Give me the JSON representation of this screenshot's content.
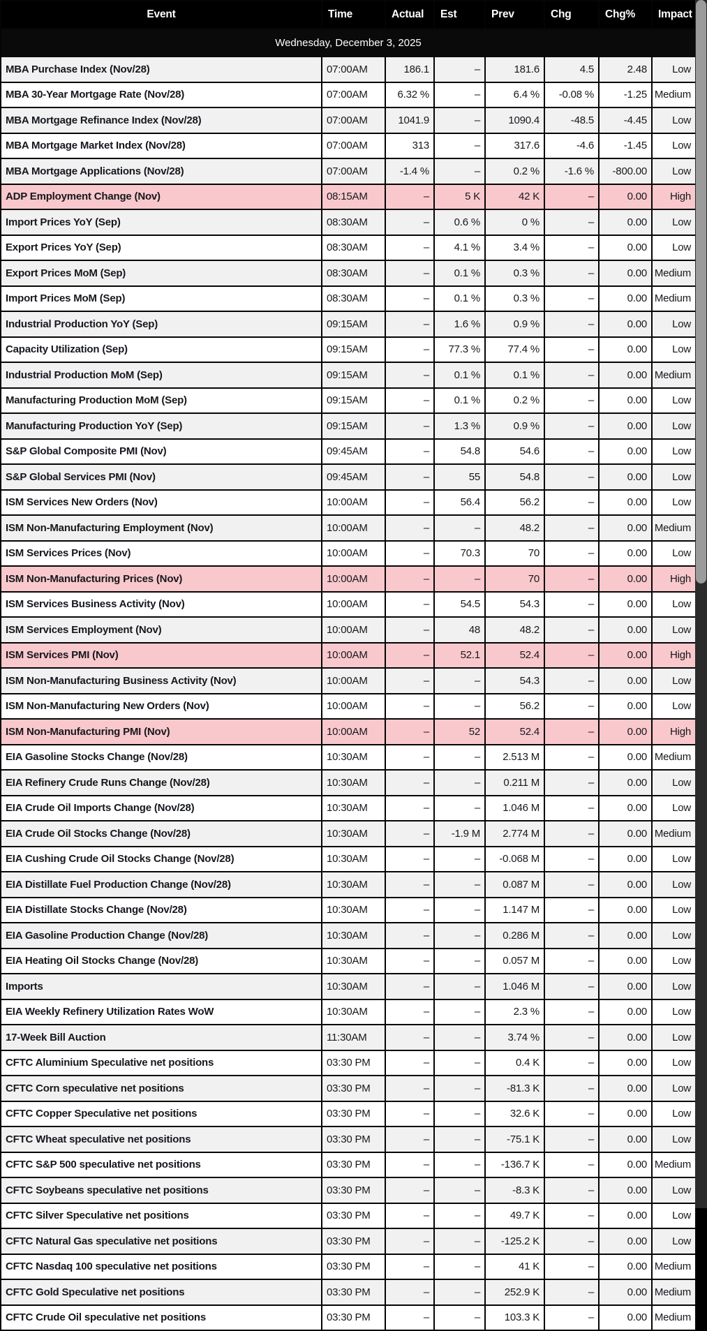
{
  "colors": {
    "header_bg": "#000000",
    "header_text": "#ffffff",
    "row_stripe": "#f1f1f1",
    "row_white": "#ffffff",
    "high_impact_row": "#f9c8cc",
    "cell_text": "#15181d",
    "border": "#050505",
    "scrollbar_track": "#2b2b2b",
    "scrollbar_thumb": "#9b9b9b"
  },
  "chart_data": {
    "type": "table",
    "date_header": "Wednesday, December 3, 2025",
    "columns": [
      {
        "key": "event",
        "label": "Event"
      },
      {
        "key": "time",
        "label": "Time"
      },
      {
        "key": "actual",
        "label": "Actual"
      },
      {
        "key": "est",
        "label": "Est"
      },
      {
        "key": "prev",
        "label": "Prev"
      },
      {
        "key": "chg",
        "label": "Chg"
      },
      {
        "key": "chgpct",
        "label": "Chg%"
      },
      {
        "key": "impact",
        "label": "Impact"
      }
    ],
    "rows": [
      {
        "event": "MBA Purchase Index (Nov/28)",
        "time": "07:00AM",
        "actual": "186.1",
        "est": "–",
        "prev": "181.6",
        "chg": "4.5",
        "chgpct": "2.48",
        "impact": "Low"
      },
      {
        "event": "MBA 30-Year Mortgage Rate (Nov/28)",
        "time": "07:00AM",
        "actual": "6.32 %",
        "est": "–",
        "prev": "6.4 %",
        "chg": "-0.08 %",
        "chgpct": "-1.25",
        "impact": "Medium"
      },
      {
        "event": "MBA Mortgage Refinance Index (Nov/28)",
        "time": "07:00AM",
        "actual": "1041.9",
        "est": "–",
        "prev": "1090.4",
        "chg": "-48.5",
        "chgpct": "-4.45",
        "impact": "Low"
      },
      {
        "event": "MBA Mortgage Market Index (Nov/28)",
        "time": "07:00AM",
        "actual": "313",
        "est": "–",
        "prev": "317.6",
        "chg": "-4.6",
        "chgpct": "-1.45",
        "impact": "Low"
      },
      {
        "event": "MBA Mortgage Applications (Nov/28)",
        "time": "07:00AM",
        "actual": "-1.4 %",
        "est": "–",
        "prev": "0.2 %",
        "chg": "-1.6 %",
        "chgpct": "-800.00",
        "impact": "Low"
      },
      {
        "event": "ADP Employment Change (Nov)",
        "time": "08:15AM",
        "actual": "–",
        "est": "5 K",
        "prev": "42 K",
        "chg": "–",
        "chgpct": "0.00",
        "impact": "High"
      },
      {
        "event": "Import Prices YoY (Sep)",
        "time": "08:30AM",
        "actual": "–",
        "est": "0.6 %",
        "prev": "0 %",
        "chg": "–",
        "chgpct": "0.00",
        "impact": "Low"
      },
      {
        "event": "Export Prices YoY (Sep)",
        "time": "08:30AM",
        "actual": "–",
        "est": "4.1 %",
        "prev": "3.4 %",
        "chg": "–",
        "chgpct": "0.00",
        "impact": "Low"
      },
      {
        "event": "Export Prices MoM (Sep)",
        "time": "08:30AM",
        "actual": "–",
        "est": "0.1 %",
        "prev": "0.3 %",
        "chg": "–",
        "chgpct": "0.00",
        "impact": "Medium"
      },
      {
        "event": "Import Prices MoM (Sep)",
        "time": "08:30AM",
        "actual": "–",
        "est": "0.1 %",
        "prev": "0.3 %",
        "chg": "–",
        "chgpct": "0.00",
        "impact": "Medium"
      },
      {
        "event": "Industrial Production YoY (Sep)",
        "time": "09:15AM",
        "actual": "–",
        "est": "1.6 %",
        "prev": "0.9 %",
        "chg": "–",
        "chgpct": "0.00",
        "impact": "Low"
      },
      {
        "event": "Capacity Utilization (Sep)",
        "time": "09:15AM",
        "actual": "–",
        "est": "77.3 %",
        "prev": "77.4 %",
        "chg": "–",
        "chgpct": "0.00",
        "impact": "Low"
      },
      {
        "event": "Industrial Production MoM (Sep)",
        "time": "09:15AM",
        "actual": "–",
        "est": "0.1 %",
        "prev": "0.1 %",
        "chg": "–",
        "chgpct": "0.00",
        "impact": "Medium"
      },
      {
        "event": "Manufacturing Production MoM (Sep)",
        "time": "09:15AM",
        "actual": "–",
        "est": "0.1 %",
        "prev": "0.2 %",
        "chg": "–",
        "chgpct": "0.00",
        "impact": "Low"
      },
      {
        "event": "Manufacturing Production YoY (Sep)",
        "time": "09:15AM",
        "actual": "–",
        "est": "1.3 %",
        "prev": "0.9 %",
        "chg": "–",
        "chgpct": "0.00",
        "impact": "Low"
      },
      {
        "event": "S&P Global Composite PMI (Nov)",
        "time": "09:45AM",
        "actual": "–",
        "est": "54.8",
        "prev": "54.6",
        "chg": "–",
        "chgpct": "0.00",
        "impact": "Low"
      },
      {
        "event": "S&P Global Services PMI (Nov)",
        "time": "09:45AM",
        "actual": "–",
        "est": "55",
        "prev": "54.8",
        "chg": "–",
        "chgpct": "0.00",
        "impact": "Low"
      },
      {
        "event": "ISM Services New Orders (Nov)",
        "time": "10:00AM",
        "actual": "–",
        "est": "56.4",
        "prev": "56.2",
        "chg": "–",
        "chgpct": "0.00",
        "impact": "Low"
      },
      {
        "event": "ISM Non-Manufacturing Employment (Nov)",
        "time": "10:00AM",
        "actual": "–",
        "est": "–",
        "prev": "48.2",
        "chg": "–",
        "chgpct": "0.00",
        "impact": "Medium"
      },
      {
        "event": "ISM Services Prices (Nov)",
        "time": "10:00AM",
        "actual": "–",
        "est": "70.3",
        "prev": "70",
        "chg": "–",
        "chgpct": "0.00",
        "impact": "Low"
      },
      {
        "event": "ISM Non-Manufacturing Prices (Nov)",
        "time": "10:00AM",
        "actual": "–",
        "est": "–",
        "prev": "70",
        "chg": "–",
        "chgpct": "0.00",
        "impact": "High"
      },
      {
        "event": "ISM Services Business Activity (Nov)",
        "time": "10:00AM",
        "actual": "–",
        "est": "54.5",
        "prev": "54.3",
        "chg": "–",
        "chgpct": "0.00",
        "impact": "Low"
      },
      {
        "event": "ISM Services Employment (Nov)",
        "time": "10:00AM",
        "actual": "–",
        "est": "48",
        "prev": "48.2",
        "chg": "–",
        "chgpct": "0.00",
        "impact": "Low"
      },
      {
        "event": "ISM Services PMI (Nov)",
        "time": "10:00AM",
        "actual": "–",
        "est": "52.1",
        "prev": "52.4",
        "chg": "–",
        "chgpct": "0.00",
        "impact": "High"
      },
      {
        "event": "ISM Non-Manufacturing Business Activity (Nov)",
        "time": "10:00AM",
        "actual": "–",
        "est": "–",
        "prev": "54.3",
        "chg": "–",
        "chgpct": "0.00",
        "impact": "Low"
      },
      {
        "event": "ISM Non-Manufacturing New Orders (Nov)",
        "time": "10:00AM",
        "actual": "–",
        "est": "–",
        "prev": "56.2",
        "chg": "–",
        "chgpct": "0.00",
        "impact": "Low"
      },
      {
        "event": "ISM Non-Manufacturing PMI (Nov)",
        "time": "10:00AM",
        "actual": "–",
        "est": "52",
        "prev": "52.4",
        "chg": "–",
        "chgpct": "0.00",
        "impact": "High"
      },
      {
        "event": "EIA Gasoline Stocks Change (Nov/28)",
        "time": "10:30AM",
        "actual": "–",
        "est": "–",
        "prev": "2.513 M",
        "chg": "–",
        "chgpct": "0.00",
        "impact": "Medium"
      },
      {
        "event": "EIA Refinery Crude Runs Change (Nov/28)",
        "time": "10:30AM",
        "actual": "–",
        "est": "–",
        "prev": "0.211 M",
        "chg": "–",
        "chgpct": "0.00",
        "impact": "Low"
      },
      {
        "event": "EIA Crude Oil Imports Change (Nov/28)",
        "time": "10:30AM",
        "actual": "–",
        "est": "–",
        "prev": "1.046 M",
        "chg": "–",
        "chgpct": "0.00",
        "impact": "Low"
      },
      {
        "event": "EIA Crude Oil Stocks Change (Nov/28)",
        "time": "10:30AM",
        "actual": "–",
        "est": "-1.9 M",
        "prev": "2.774 M",
        "chg": "–",
        "chgpct": "0.00",
        "impact": "Medium"
      },
      {
        "event": "EIA Cushing Crude Oil Stocks Change (Nov/28)",
        "time": "10:30AM",
        "actual": "–",
        "est": "–",
        "prev": "-0.068 M",
        "chg": "–",
        "chgpct": "0.00",
        "impact": "Low"
      },
      {
        "event": "EIA Distillate Fuel Production Change (Nov/28)",
        "time": "10:30AM",
        "actual": "–",
        "est": "–",
        "prev": "0.087 M",
        "chg": "–",
        "chgpct": "0.00",
        "impact": "Low"
      },
      {
        "event": "EIA Distillate Stocks Change (Nov/28)",
        "time": "10:30AM",
        "actual": "–",
        "est": "–",
        "prev": "1.147 M",
        "chg": "–",
        "chgpct": "0.00",
        "impact": "Low"
      },
      {
        "event": "EIA Gasoline Production Change (Nov/28)",
        "time": "10:30AM",
        "actual": "–",
        "est": "–",
        "prev": "0.286 M",
        "chg": "–",
        "chgpct": "0.00",
        "impact": "Low"
      },
      {
        "event": "EIA Heating Oil Stocks Change (Nov/28)",
        "time": "10:30AM",
        "actual": "–",
        "est": "–",
        "prev": "0.057 M",
        "chg": "–",
        "chgpct": "0.00",
        "impact": "Low"
      },
      {
        "event": "Imports",
        "time": "10:30AM",
        "actual": "–",
        "est": "–",
        "prev": "1.046 M",
        "chg": "–",
        "chgpct": "0.00",
        "impact": "Low"
      },
      {
        "event": "EIA Weekly Refinery Utilization Rates WoW",
        "time": "10:30AM",
        "actual": "–",
        "est": "–",
        "prev": "2.3 %",
        "chg": "–",
        "chgpct": "0.00",
        "impact": "Low"
      },
      {
        "event": "17-Week Bill Auction",
        "time": "11:30AM",
        "actual": "–",
        "est": "–",
        "prev": "3.74 %",
        "chg": "–",
        "chgpct": "0.00",
        "impact": "Low"
      },
      {
        "event": "CFTC Aluminium Speculative net positions",
        "time": "03:30 PM",
        "actual": "–",
        "est": "–",
        "prev": "0.4 K",
        "chg": "–",
        "chgpct": "0.00",
        "impact": "Low"
      },
      {
        "event": "CFTC Corn speculative net positions",
        "time": "03:30 PM",
        "actual": "–",
        "est": "–",
        "prev": "-81.3 K",
        "chg": "–",
        "chgpct": "0.00",
        "impact": "Low"
      },
      {
        "event": "CFTC Copper Speculative net positions",
        "time": "03:30 PM",
        "actual": "–",
        "est": "–",
        "prev": "32.6 K",
        "chg": "–",
        "chgpct": "0.00",
        "impact": "Low"
      },
      {
        "event": "CFTC Wheat speculative net positions",
        "time": "03:30 PM",
        "actual": "–",
        "est": "–",
        "prev": "-75.1 K",
        "chg": "–",
        "chgpct": "0.00",
        "impact": "Low"
      },
      {
        "event": "CFTC S&P 500 speculative net positions",
        "time": "03:30 PM",
        "actual": "–",
        "est": "–",
        "prev": "-136.7 K",
        "chg": "–",
        "chgpct": "0.00",
        "impact": "Medium"
      },
      {
        "event": "CFTC Soybeans speculative net positions",
        "time": "03:30 PM",
        "actual": "–",
        "est": "–",
        "prev": "-8.3 K",
        "chg": "–",
        "chgpct": "0.00",
        "impact": "Low"
      },
      {
        "event": "CFTC Silver Speculative net positions",
        "time": "03:30 PM",
        "actual": "–",
        "est": "–",
        "prev": "49.7 K",
        "chg": "–",
        "chgpct": "0.00",
        "impact": "Low"
      },
      {
        "event": "CFTC Natural Gas speculative net positions",
        "time": "03:30 PM",
        "actual": "–",
        "est": "–",
        "prev": "-125.2 K",
        "chg": "–",
        "chgpct": "0.00",
        "impact": "Low"
      },
      {
        "event": "CFTC Nasdaq 100 speculative net positions",
        "time": "03:30 PM",
        "actual": "–",
        "est": "–",
        "prev": "41 K",
        "chg": "–",
        "chgpct": "0.00",
        "impact": "Medium"
      },
      {
        "event": "CFTC Gold Speculative net positions",
        "time": "03:30 PM",
        "actual": "–",
        "est": "–",
        "prev": "252.9 K",
        "chg": "–",
        "chgpct": "0.00",
        "impact": "Medium"
      },
      {
        "event": "CFTC Crude Oil speculative net positions",
        "time": "03:30 PM",
        "actual": "–",
        "est": "–",
        "prev": "103.3 K",
        "chg": "–",
        "chgpct": "0.00",
        "impact": "Medium"
      }
    ]
  }
}
